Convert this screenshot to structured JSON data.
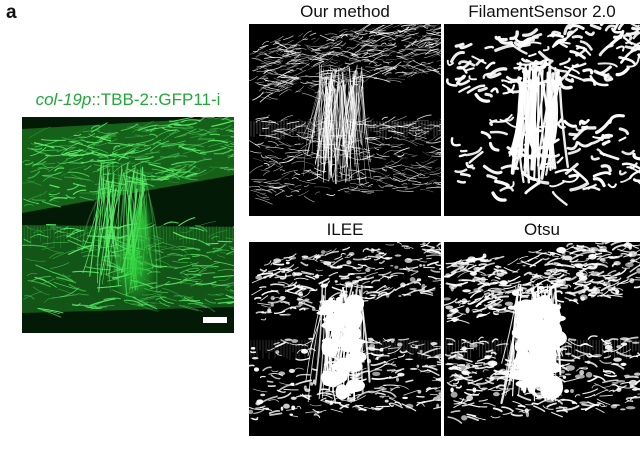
{
  "figure": {
    "panel_label": "a",
    "source_label": {
      "gene": "col-19p",
      "construct": "::TBB-2::GFP11-i"
    },
    "panels": [
      {
        "title": "Our method"
      },
      {
        "title": "FilamentSensor 2.0"
      },
      {
        "title": "ILEE"
      },
      {
        "title": "Otsu"
      }
    ],
    "colors": {
      "fluorescence": "#2fd23c",
      "label_green": "#22a83a",
      "background": "#000000",
      "segmentation": "#ffffff"
    }
  }
}
